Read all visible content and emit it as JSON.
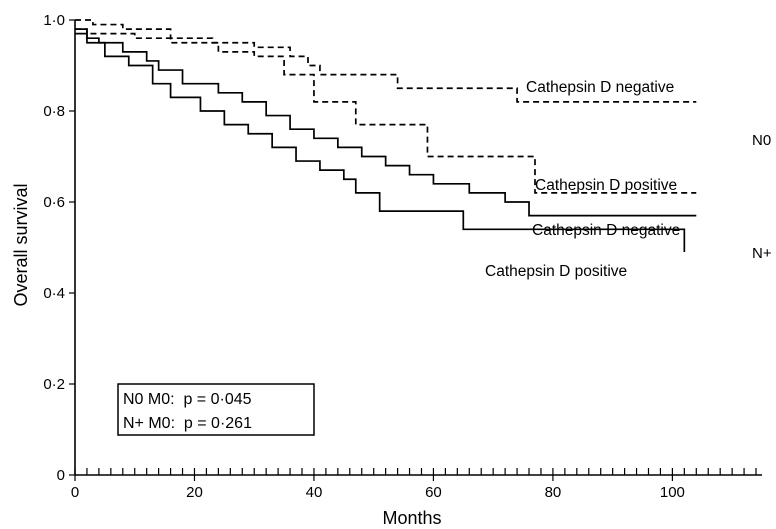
{
  "chart_data": {
    "type": "line",
    "title": "",
    "xlabel": "Months",
    "ylabel": "Overall survival",
    "xlim": [
      0,
      115
    ],
    "ylim": [
      0,
      1.0
    ],
    "x_ticks": [
      0,
      20,
      40,
      60,
      80,
      100
    ],
    "x_tick_labels": [
      "0",
      "20",
      "40",
      "60",
      "80",
      "100"
    ],
    "y_ticks": [
      0,
      0.2,
      0.4,
      0.6,
      0.8,
      1.0
    ],
    "y_tick_labels": [
      "0",
      "0·2",
      "0·4",
      "0·6",
      "0·8",
      "1·0"
    ],
    "minor_x_tick_step": 2,
    "grid": false,
    "step_curves": true,
    "series": [
      {
        "name": "Cathepsin D negative",
        "group": "N0",
        "style": "dashed",
        "x": [
          0,
          3,
          8,
          16,
          23,
          30,
          36,
          39,
          41,
          54,
          74,
          104
        ],
        "y": [
          1.0,
          0.99,
          0.98,
          0.96,
          0.95,
          0.94,
          0.92,
          0.9,
          0.88,
          0.85,
          0.82,
          0.82
        ]
      },
      {
        "name": "Cathepsin D positive",
        "group": "N0",
        "style": "dashed",
        "x": [
          0,
          2,
          10,
          16,
          24,
          30,
          35,
          40,
          47,
          59,
          77,
          104
        ],
        "y": [
          0.98,
          0.97,
          0.96,
          0.95,
          0.93,
          0.92,
          0.88,
          0.82,
          0.77,
          0.7,
          0.62,
          0.62
        ]
      },
      {
        "name": "Cathepsin D negative",
        "group": "N+",
        "style": "solid",
        "x": [
          0,
          2,
          4,
          8,
          12,
          14,
          18,
          24,
          28,
          32,
          36,
          40,
          44,
          48,
          52,
          56,
          60,
          66,
          72,
          76,
          104
        ],
        "y": [
          0.98,
          0.96,
          0.95,
          0.93,
          0.91,
          0.89,
          0.86,
          0.84,
          0.82,
          0.79,
          0.76,
          0.74,
          0.72,
          0.7,
          0.68,
          0.66,
          0.64,
          0.62,
          0.6,
          0.57,
          0.57
        ]
      },
      {
        "name": "Cathepsin D positive",
        "group": "N+",
        "style": "solid",
        "x": [
          0,
          2,
          5,
          9,
          13,
          16,
          21,
          25,
          29,
          33,
          37,
          41,
          45,
          47,
          51,
          65,
          102
        ],
        "y": [
          0.97,
          0.95,
          0.92,
          0.9,
          0.86,
          0.83,
          0.8,
          0.77,
          0.75,
          0.72,
          0.69,
          0.67,
          0.65,
          0.62,
          0.58,
          0.54,
          0.49
        ]
      }
    ],
    "curve_labels": [
      "Cathepsin D negative",
      "Cathepsin D positive",
      "Cathepsin D negative",
      "Cathepsin D positive"
    ],
    "group_labels": [
      "N0",
      "N+"
    ],
    "annotations": [
      "N0 M0:  p = 0·045",
      "N+ M0:  p = 0·261"
    ]
  }
}
